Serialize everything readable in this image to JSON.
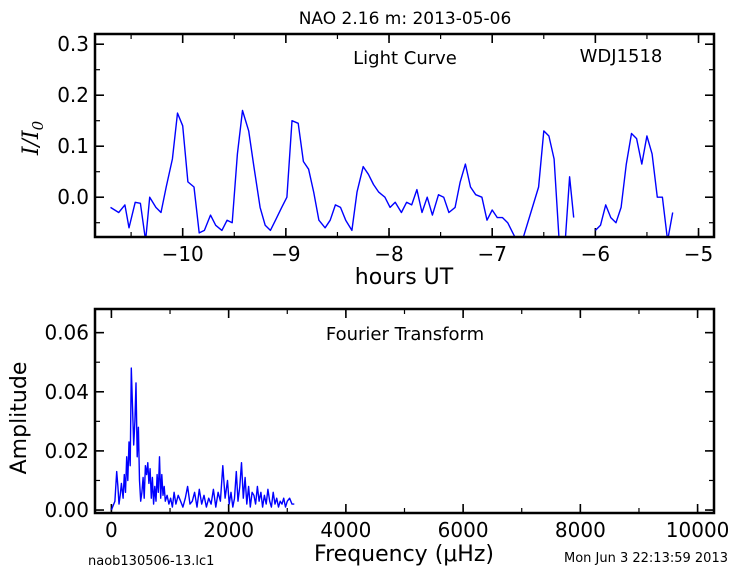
{
  "page": {
    "title": "NAO 2.16 m:  2013-05-06",
    "footer_left": "naob130506-13.lc1",
    "footer_right": "Mon Jun  3 22:13:59 2013"
  },
  "chart_data": [
    {
      "type": "line",
      "annotation": "Light Curve",
      "object": "WDJ1518",
      "xlabel": "hours UT",
      "ylabel": "I/I0",
      "xlim": [
        -10.85,
        -4.85
      ],
      "ylim": [
        -0.078,
        0.32
      ],
      "xticks": [
        -10,
        -9,
        -8,
        -7,
        -6,
        -5
      ],
      "xtick_labels": [
        "−10",
        "−9",
        "−8",
        "−7",
        "−6",
        "−5"
      ],
      "yticks": [
        0.0,
        0.1,
        0.2,
        0.3
      ],
      "ytick_labels": [
        "0.0",
        "0.1",
        "0.2",
        "0.3"
      ],
      "color": "#0000ff",
      "series": [
        {
          "x": [
            -10.7,
            -10.62,
            -10.56,
            -10.52,
            -10.46,
            -10.41,
            -10.36,
            -10.32,
            -10.26,
            -10.21,
            -10.16,
            -10.1,
            -10.05,
            -10.0,
            -9.95,
            -9.89,
            -9.84,
            -9.79,
            -9.73,
            -9.68,
            -9.62,
            -9.57,
            -9.52,
            -9.47,
            -9.42,
            -9.36,
            -9.31,
            -9.25,
            -9.2,
            -9.15,
            -9.1,
            -9.04,
            -8.99,
            -8.94,
            -8.88,
            -8.83,
            -8.78,
            -8.73,
            -8.68,
            -8.62,
            -8.57,
            -8.52,
            -8.47,
            -8.42,
            -8.36,
            -8.31,
            -8.25,
            -8.2,
            -8.15,
            -8.1,
            -8.04,
            -7.99,
            -7.94,
            -7.88,
            -7.83,
            -7.78,
            -7.73,
            -7.68,
            -7.63,
            -7.58,
            -7.52,
            -7.47,
            -7.42,
            -7.36,
            -7.31,
            -7.26,
            -7.21,
            -7.16,
            -7.1,
            -7.05,
            -7.0,
            -6.95,
            -6.9,
            -6.85,
            -6.8,
            -6.75,
            -6.7,
            -6.55,
            -6.5,
            -6.45,
            -6.4,
            -6.35,
            -6.3,
            -6.25,
            -6.21
          ],
          "y": [
            -0.02,
            -0.03,
            -0.015,
            -0.06,
            -0.01,
            -0.012,
            -0.085,
            0.0,
            -0.02,
            -0.03,
            0.02,
            0.075,
            0.165,
            0.14,
            0.03,
            0.02,
            -0.07,
            -0.065,
            -0.035,
            -0.055,
            -0.065,
            -0.045,
            -0.05,
            0.085,
            0.17,
            0.13,
            0.06,
            -0.02,
            -0.055,
            -0.065,
            -0.045,
            -0.02,
            0.0,
            0.15,
            0.145,
            0.07,
            0.055,
            0.01,
            -0.045,
            -0.06,
            -0.045,
            -0.015,
            -0.02,
            -0.045,
            -0.065,
            0.01,
            0.06,
            0.045,
            0.025,
            0.01,
            0.0,
            -0.02,
            -0.01,
            -0.03,
            -0.01,
            -0.015,
            0.015,
            -0.03,
            0.0,
            -0.035,
            0.005,
            0.0,
            -0.03,
            -0.02,
            0.03,
            0.065,
            0.02,
            0.005,
            0.0,
            -0.045,
            -0.025,
            -0.04,
            -0.04,
            -0.05,
            -0.07,
            -0.09,
            -0.08,
            0.02,
            0.13,
            0.12,
            0.075,
            -0.09,
            -0.11,
            0.04,
            -0.04
          ]
        },
        {
          "x": [
            -6.0,
            -5.95,
            -5.9,
            -5.85,
            -5.8,
            -5.75,
            -5.7,
            -5.65,
            -5.6,
            -5.55,
            -5.5,
            -5.45,
            -5.4,
            -5.35,
            -5.3,
            -5.25
          ],
          "y": [
            -0.065,
            -0.055,
            -0.015,
            -0.04,
            -0.05,
            -0.02,
            0.065,
            0.125,
            0.115,
            0.065,
            0.12,
            0.085,
            0.0,
            0.0,
            -0.085,
            -0.03
          ]
        }
      ]
    },
    {
      "type": "line",
      "annotation": "Fourier Transform",
      "xlabel": "Frequency (μHz)",
      "ylabel": "Amplitude",
      "xlim": [
        -280,
        10280
      ],
      "ylim": [
        -0.001,
        0.068
      ],
      "xticks": [
        0,
        2000,
        4000,
        6000,
        8000,
        10000
      ],
      "xtick_labels": [
        "0",
        "2000",
        "4000",
        "6000",
        "8000",
        "10000"
      ],
      "yticks": [
        0.0,
        0.02,
        0.04,
        0.06
      ],
      "ytick_labels": [
        "0.00",
        "0.02",
        "0.04",
        "0.06"
      ],
      "color": "#0000ff",
      "series": [
        {
          "x": [
            0,
            60,
            90,
            110,
            130,
            150,
            170,
            200,
            220,
            240,
            260,
            280,
            300,
            320,
            340,
            360,
            380,
            400,
            420,
            440,
            460,
            480,
            500,
            520,
            540,
            560,
            580,
            600,
            620,
            640,
            660,
            680,
            700,
            720,
            740,
            760,
            780,
            800,
            820,
            840,
            860,
            880,
            900,
            920,
            950,
            980,
            1010,
            1040,
            1070,
            1100,
            1140,
            1180,
            1220,
            1260,
            1300,
            1340,
            1380,
            1420,
            1460,
            1500,
            1540,
            1580,
            1620,
            1660,
            1700,
            1740,
            1780,
            1820,
            1860,
            1900,
            1940,
            1980,
            2010,
            2040,
            2070,
            2100,
            2130,
            2160,
            2190,
            2220,
            2250,
            2280,
            2310,
            2340,
            2370,
            2400,
            2430,
            2460,
            2490,
            2520,
            2550,
            2580,
            2610,
            2640,
            2670,
            2700,
            2730,
            2760,
            2790,
            2820,
            2850,
            2880,
            2910,
            2940,
            2970,
            3000,
            3040,
            3080,
            3120
          ],
          "y": [
            0.0,
            0.003,
            0.013,
            0.008,
            0.002,
            0.005,
            0.009,
            0.004,
            0.012,
            0.006,
            0.018,
            0.01,
            0.023,
            0.015,
            0.048,
            0.035,
            0.022,
            0.03,
            0.043,
            0.018,
            0.028,
            0.01,
            0.003,
            0.006,
            0.011,
            0.004,
            0.015,
            0.012,
            0.016,
            0.009,
            0.014,
            0.004,
            0.011,
            0.002,
            0.008,
            0.003,
            0.012,
            0.006,
            0.018,
            0.004,
            0.012,
            0.005,
            0.008,
            0.003,
            0.005,
            0.002,
            0.004,
            0.001,
            0.006,
            0.002,
            0.005,
            0.003,
            0.001,
            0.004,
            0.008,
            0.002,
            0.003,
            0.006,
            0.001,
            0.007,
            0.002,
            0.005,
            0.001,
            0.004,
            0.002,
            0.007,
            0.001,
            0.006,
            0.003,
            0.015,
            0.004,
            0.01,
            0.002,
            0.006,
            0.001,
            0.004,
            0.013,
            0.003,
            0.008,
            0.016,
            0.004,
            0.011,
            0.002,
            0.008,
            0.001,
            0.006,
            0.005,
            0.002,
            0.008,
            0.003,
            0.006,
            0.001,
            0.005,
            0.002,
            0.007,
            0.003,
            0.001,
            0.006,
            0.002,
            0.004,
            0.001,
            0.003,
            0.002,
            0.004,
            0.001,
            0.003,
            0.004,
            0.002,
            0.002
          ]
        }
      ]
    }
  ]
}
